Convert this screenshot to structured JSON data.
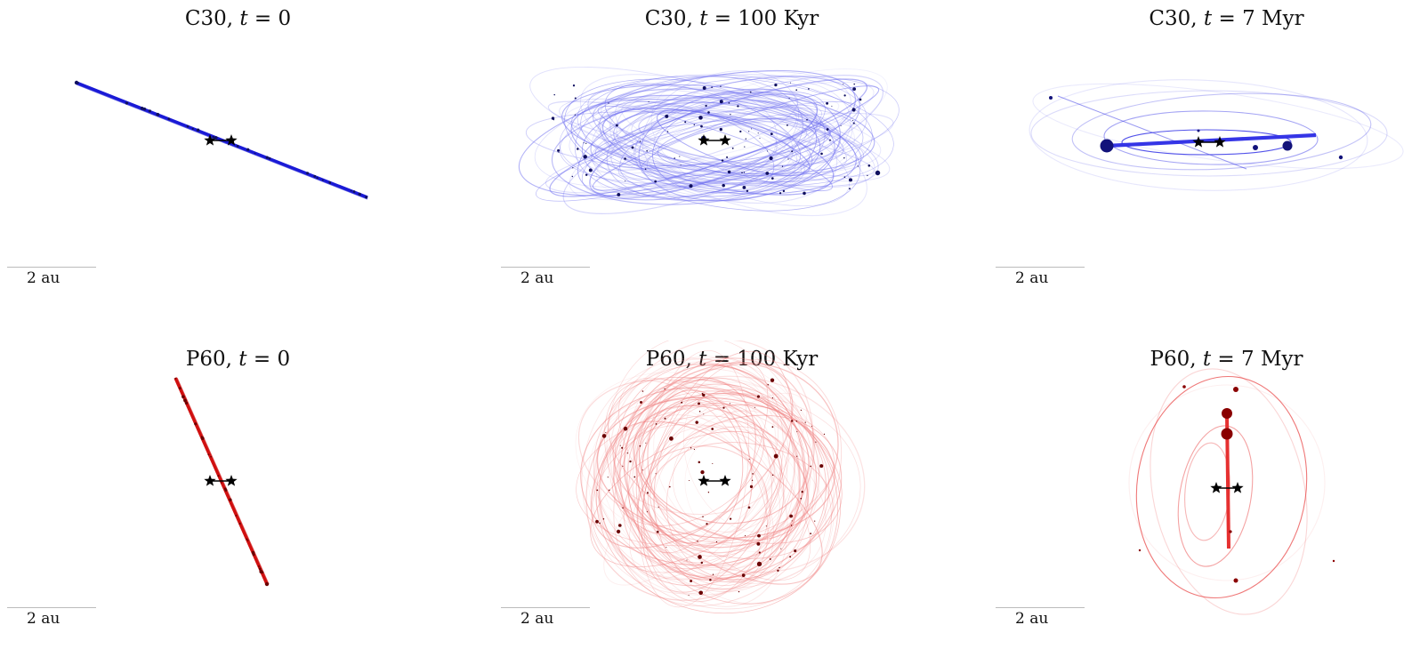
{
  "figure": {
    "panels": [
      {
        "id": "c30-t0",
        "model": "C30",
        "time": "0",
        "row": "top",
        "col": 0,
        "color": "#1a1ad6",
        "dot_color": "#101060",
        "state": "edge-on-disk",
        "scale_label": "2 au"
      },
      {
        "id": "c30-t100",
        "model": "C30",
        "time": "100 Kyr",
        "row": "top",
        "col": 1,
        "color": "#6b6bf0",
        "dot_color": "#101060",
        "state": "scattered",
        "scale_label": "2 au"
      },
      {
        "id": "c30-t7",
        "model": "C30",
        "time": "7 Myr",
        "row": "top",
        "col": 2,
        "color": "#3535e6",
        "dot_color": "#12127a",
        "state": "few-planets",
        "scale_label": "2 au"
      },
      {
        "id": "p60-t0",
        "model": "P60",
        "time": "0",
        "row": "bottom",
        "col": 0,
        "color": "#d01010",
        "dot_color": "#6a0000",
        "state": "edge-on-disk",
        "scale_label": "2 au"
      },
      {
        "id": "p60-t100",
        "model": "P60",
        "time": "100 Kyr",
        "row": "bottom",
        "col": 1,
        "color": "#f08080",
        "dot_color": "#6a0000",
        "state": "scattered",
        "scale_label": "2 au"
      },
      {
        "id": "p60-t7",
        "model": "P60",
        "time": "7 Myr",
        "row": "bottom",
        "col": 2,
        "color": "#e63030",
        "dot_color": "#8a0000",
        "state": "few-planets",
        "scale_label": "2 au"
      }
    ],
    "title_time_var": "t",
    "title_equals": "=",
    "binary_star_icon": "star",
    "binary_star_color": "#000000"
  }
}
